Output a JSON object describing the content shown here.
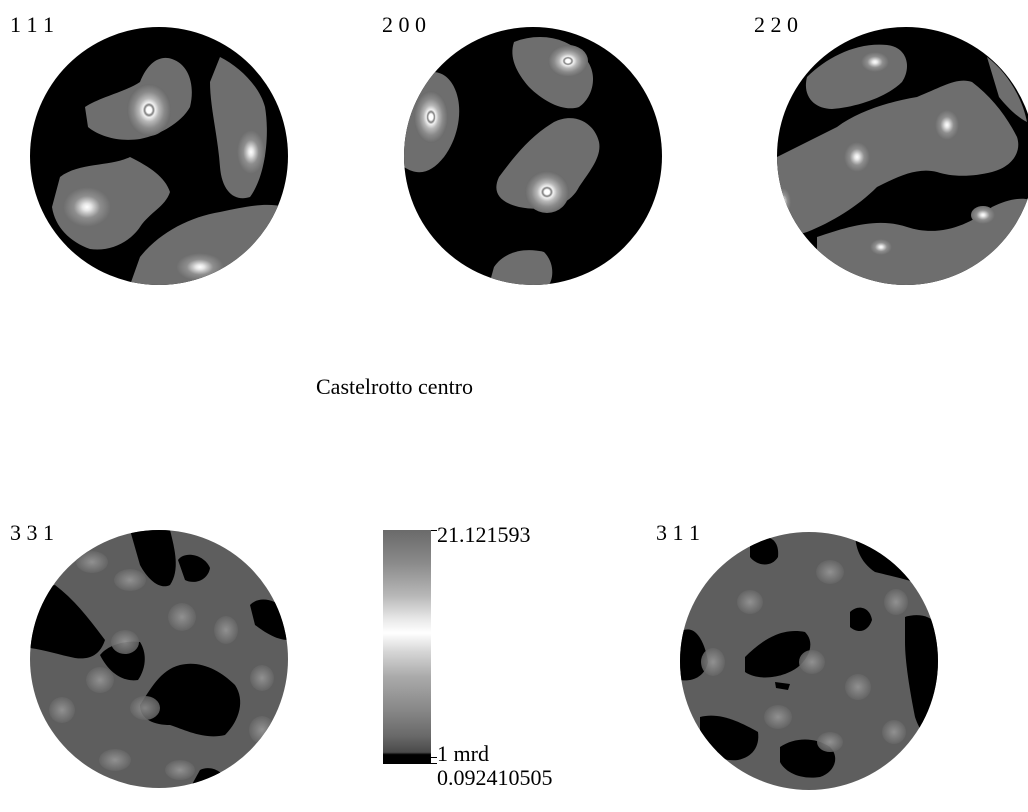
{
  "figure": {
    "caption": "Castelrotto centro",
    "pole_figures": [
      {
        "id": "p111",
        "label": "1 1 1"
      },
      {
        "id": "p200",
        "label": "2 0 0"
      },
      {
        "id": "p220",
        "label": "2 2 0"
      },
      {
        "id": "p331",
        "label": "3 3 1"
      },
      {
        "id": "p311",
        "label": "3 1 1"
      }
    ],
    "colorbar": {
      "max_label": "21.121593",
      "mid_label": "1 mrd",
      "min_label": "0.092410505"
    }
  }
}
